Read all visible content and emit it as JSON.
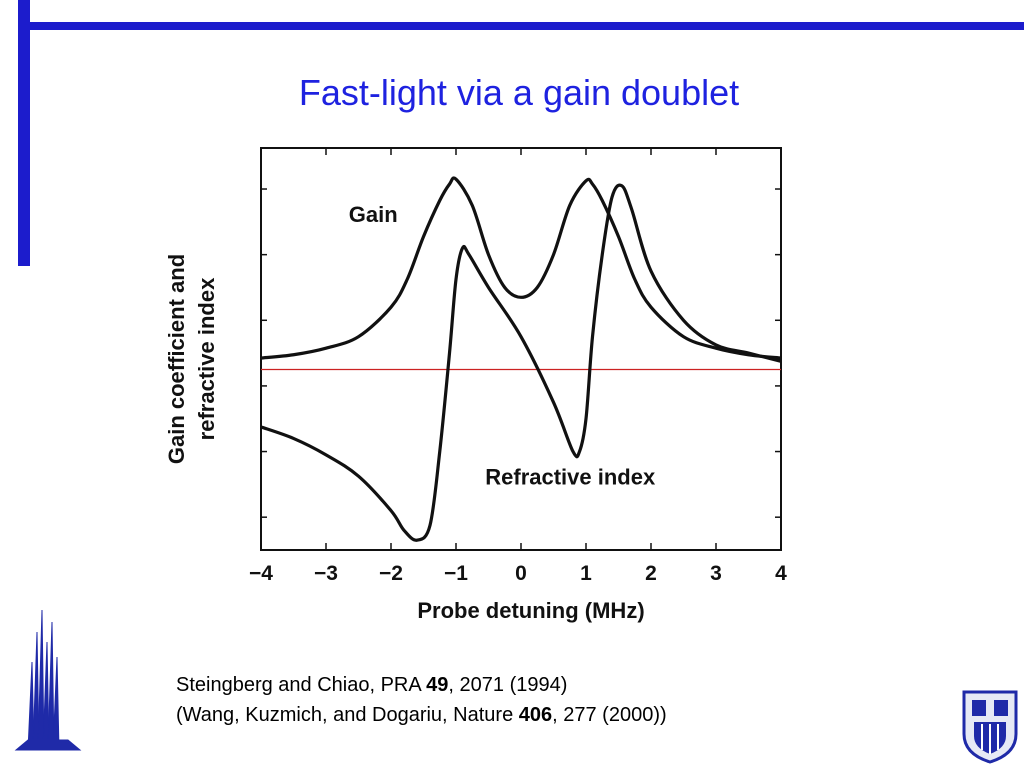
{
  "slide": {
    "title": "Fast-light via a gain doublet",
    "accent_color": "#1c1ccc",
    "title_color": "#1e22e0"
  },
  "citation": {
    "line1_pre": "Steingberg and Chiao, PRA ",
    "line1_bold": "49",
    "line1_post": ", 2071 (1994)",
    "line2_pre": "(Wang, Kuzmich, and Dogariu, Nature ",
    "line2_bold": "406",
    "line2_post": ", 277 (2000))"
  },
  "chart_data": {
    "type": "line",
    "title": "",
    "xlabel": "Probe detuning (MHz)",
    "ylabel_line1": "Gain coefficient and",
    "ylabel_line2": "refractive index",
    "xlim": [
      -4,
      4
    ],
    "ylim": [
      -1.1,
      1.35
    ],
    "x_ticks": [
      -4,
      -3,
      -2,
      -1,
      0,
      1,
      2,
      3,
      4
    ],
    "x_tick_labels": [
      "−4",
      "−3",
      "−2",
      "−1",
      "0",
      "1",
      "2",
      "3",
      "4"
    ],
    "y_tick_labels": [],
    "grid": false,
    "reference_line": {
      "y": 0,
      "color": "#cc2222"
    },
    "series": [
      {
        "name": "Gain",
        "color": "#111111",
        "x": [
          -4,
          -3.5,
          -3,
          -2.5,
          -2,
          -1.75,
          -1.5,
          -1.25,
          -1.1,
          -1,
          -0.75,
          -0.5,
          -0.25,
          0,
          0.25,
          0.5,
          0.75,
          1,
          1.1,
          1.25,
          1.5,
          1.75,
          2,
          2.5,
          3,
          3.5,
          4
        ],
        "values": [
          0.07,
          0.09,
          0.13,
          0.2,
          0.38,
          0.55,
          0.81,
          1.03,
          1.13,
          1.16,
          1.0,
          0.7,
          0.5,
          0.44,
          0.5,
          0.7,
          1.0,
          1.15,
          1.13,
          1.03,
          0.81,
          0.55,
          0.38,
          0.2,
          0.13,
          0.09,
          0.07
        ]
      },
      {
        "name": "Refractive index",
        "color": "#111111",
        "x": [
          -4,
          -3.5,
          -3,
          -2.5,
          -2,
          -1.8,
          -1.6,
          -1.4,
          -1.25,
          -1.1,
          -1,
          -0.9,
          -0.8,
          -0.5,
          0,
          0.5,
          0.8,
          0.9,
          1,
          1.1,
          1.25,
          1.4,
          1.55,
          1.7,
          2,
          2.5,
          3,
          3.5,
          4
        ],
        "values": [
          -0.35,
          -0.42,
          -0.52,
          -0.65,
          -0.86,
          -0.98,
          -1.04,
          -0.95,
          -0.5,
          0.1,
          0.55,
          0.74,
          0.7,
          0.5,
          0.2,
          -0.2,
          -0.5,
          -0.5,
          -0.3,
          0.2,
          0.7,
          1.05,
          1.12,
          0.98,
          0.6,
          0.3,
          0.15,
          0.1,
          0.05
        ]
      }
    ],
    "annotations": [
      {
        "text": "Gain",
        "x": -2.65,
        "y": 0.9
      },
      {
        "text": "Refractive index",
        "x": -0.55,
        "y": -0.7
      }
    ]
  }
}
